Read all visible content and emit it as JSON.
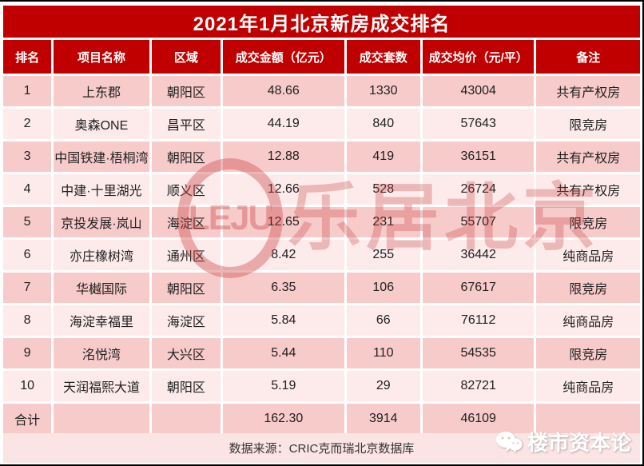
{
  "title": "2021年1月北京新房成交排名",
  "columns": [
    "排名",
    "项目名称",
    "区域",
    "成交金额（亿元）",
    "成交套数",
    "成交均价（元/平）",
    "备注"
  ],
  "rows": [
    {
      "rank": "1",
      "project": "上东郡",
      "district": "朝阳区",
      "amount": "48.66",
      "units": "1330",
      "avg_price": "43004",
      "remark": "共有产权房"
    },
    {
      "rank": "2",
      "project": "奥森ONE",
      "district": "昌平区",
      "amount": "44.19",
      "units": "840",
      "avg_price": "57643",
      "remark": "限竞房"
    },
    {
      "rank": "3",
      "project": "中国铁建·梧桐湾",
      "district": "朝阳区",
      "amount": "12.88",
      "units": "419",
      "avg_price": "36151",
      "remark": "共有产权房"
    },
    {
      "rank": "4",
      "project": "中建·十里湖光",
      "district": "顺义区",
      "amount": "12.66",
      "units": "528",
      "avg_price": "26724",
      "remark": "共有产权房"
    },
    {
      "rank": "5",
      "project": "京投发展·岚山",
      "district": "海淀区",
      "amount": "12.65",
      "units": "231",
      "avg_price": "55707",
      "remark": "限竞房"
    },
    {
      "rank": "6",
      "project": "亦庄橡树湾",
      "district": "通州区",
      "amount": "8.42",
      "units": "255",
      "avg_price": "36442",
      "remark": "纯商品房"
    },
    {
      "rank": "7",
      "project": "华樾国际",
      "district": "朝阳区",
      "amount": "6.35",
      "units": "106",
      "avg_price": "67617",
      "remark": "限竞房"
    },
    {
      "rank": "8",
      "project": "海淀幸福里",
      "district": "海淀区",
      "amount": "5.84",
      "units": "66",
      "avg_price": "76112",
      "remark": "纯商品房"
    },
    {
      "rank": "9",
      "project": "洺悦湾",
      "district": "大兴区",
      "amount": "5.44",
      "units": "110",
      "avg_price": "54535",
      "remark": "限竞房"
    },
    {
      "rank": "10",
      "project": "天润福熙大道",
      "district": "朝阳区",
      "amount": "5.19",
      "units": "29",
      "avg_price": "82721",
      "remark": "纯商品房"
    }
  ],
  "total_row": {
    "rank": "合计",
    "project": "",
    "district": "",
    "amount": "162.30",
    "units": "3914",
    "avg_price": "46109",
    "remark": ""
  },
  "footer": {
    "source_text": "数据来源：CRIC克而瑞北京数据库"
  },
  "watermarks": {
    "leju_logo_text": "LEJU",
    "leju_cn_text": "乐居北京",
    "bottom_right_text": "楼市资本论"
  },
  "colors": {
    "header_red": "#C00000",
    "row_pink_dark": "#F8CBCB",
    "row_pink_light": "#FDEBEB",
    "watermark_rose": "#C73E3E"
  },
  "chart_data": {
    "type": "table",
    "title": "2021年1月北京新房成交排名",
    "columns": [
      "排名",
      "项目名称",
      "区域",
      "成交金额（亿元）",
      "成交套数",
      "成交均价（元/平）",
      "备注"
    ],
    "rows": [
      [
        1,
        "上东郡",
        "朝阳区",
        48.66,
        1330,
        43004,
        "共有产权房"
      ],
      [
        2,
        "奥森ONE",
        "昌平区",
        44.19,
        840,
        57643,
        "限竞房"
      ],
      [
        3,
        "中国铁建·梧桐湾",
        "朝阳区",
        12.88,
        419,
        36151,
        "共有产权房"
      ],
      [
        4,
        "中建·十里湖光",
        "顺义区",
        12.66,
        528,
        26724,
        "共有产权房"
      ],
      [
        5,
        "京投发展·岚山",
        "海淀区",
        12.65,
        231,
        55707,
        "限竞房"
      ],
      [
        6,
        "亦庄橡树湾",
        "通州区",
        8.42,
        255,
        36442,
        "纯商品房"
      ],
      [
        7,
        "华樾国际",
        "朝阳区",
        6.35,
        106,
        67617,
        "限竞房"
      ],
      [
        8,
        "海淀幸福里",
        "海淀区",
        5.84,
        66,
        76112,
        "纯商品房"
      ],
      [
        9,
        "洺悦湾",
        "大兴区",
        5.44,
        110,
        54535,
        "限竞房"
      ],
      [
        10,
        "天润福熙大道",
        "朝阳区",
        5.19,
        29,
        82721,
        "纯商品房"
      ]
    ],
    "total": {
      "label": "合计",
      "成交金额（亿元）": 162.3,
      "成交套数": 3914,
      "成交均价（元/平）": 46109
    },
    "source": "数据来源：CRIC克而瑞北京数据库"
  }
}
